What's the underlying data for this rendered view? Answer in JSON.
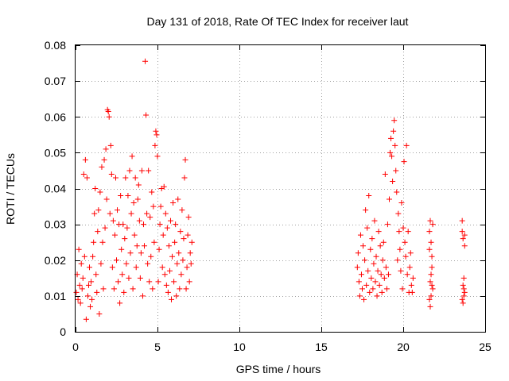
{
  "chart_data": {
    "type": "scatter",
    "title": "Day 131 of 2018, Rate Of TEC Index for receiver laut",
    "xlabel": "GPS time / hours",
    "ylabel": "ROTI / TECUs",
    "xlim": [
      0,
      25
    ],
    "ylim": [
      0,
      0.08
    ],
    "grid": true,
    "marker": "+",
    "color": "#ff0000",
    "x_ticks": [
      "0",
      "5",
      "10",
      "15",
      "20",
      "25"
    ],
    "y_ticks": [
      "0",
      "0.01",
      "0.02",
      "0.03",
      "0.04",
      "0.05",
      "0.06",
      "0.07",
      "0.08"
    ],
    "series": [
      {
        "name": "ROTI",
        "points": [
          [
            0.05,
            0.011
          ],
          [
            0.1,
            0.016
          ],
          [
            0.15,
            0.009
          ],
          [
            0.2,
            0.023
          ],
          [
            0.25,
            0.013
          ],
          [
            0.3,
            0.008
          ],
          [
            0.35,
            0.019
          ],
          [
            0.4,
            0.012
          ],
          [
            0.45,
            0.015
          ],
          [
            0.5,
            0.044
          ],
          [
            0.55,
            0.021
          ],
          [
            0.6,
            0.048
          ],
          [
            0.65,
            0.0035
          ],
          [
            0.7,
            0.043
          ],
          [
            0.75,
            0.01
          ],
          [
            0.8,
            0.013
          ],
          [
            0.85,
            0.018
          ],
          [
            0.9,
            0.007
          ],
          [
            0.95,
            0.014
          ],
          [
            1.0,
            0.009
          ],
          [
            1.05,
            0.021
          ],
          [
            1.1,
            0.025
          ],
          [
            1.15,
            0.033
          ],
          [
            1.2,
            0.04
          ],
          [
            1.25,
            0.016
          ],
          [
            1.3,
            0.011
          ],
          [
            1.35,
            0.028
          ],
          [
            1.4,
            0.034
          ],
          [
            1.45,
            0.005
          ],
          [
            1.5,
            0.039
          ],
          [
            1.55,
            0.019
          ],
          [
            1.6,
            0.046
          ],
          [
            1.65,
            0.025
          ],
          [
            1.7,
            0.012
          ],
          [
            1.75,
            0.048
          ],
          [
            1.8,
            0.029
          ],
          [
            1.85,
            0.051
          ],
          [
            1.9,
            0.037
          ],
          [
            1.95,
            0.062
          ],
          [
            2.0,
            0.0615
          ],
          [
            2.05,
            0.06
          ],
          [
            2.1,
            0.033
          ],
          [
            2.15,
            0.052
          ],
          [
            2.2,
            0.044
          ],
          [
            2.25,
            0.018
          ],
          [
            2.3,
            0.031
          ],
          [
            2.35,
            0.012
          ],
          [
            2.4,
            0.027
          ],
          [
            2.45,
            0.043
          ],
          [
            2.5,
            0.02
          ],
          [
            2.55,
            0.034
          ],
          [
            2.6,
            0.014
          ],
          [
            2.65,
            0.03
          ],
          [
            2.7,
            0.008
          ],
          [
            2.75,
            0.038
          ],
          [
            2.8,
            0.023
          ],
          [
            2.85,
            0.016
          ],
          [
            2.9,
            0.03
          ],
          [
            2.95,
            0.011
          ],
          [
            3.0,
            0.026
          ],
          [
            3.05,
            0.043
          ],
          [
            3.1,
            0.019
          ],
          [
            3.15,
            0.029
          ],
          [
            3.2,
            0.038
          ],
          [
            3.25,
            0.015
          ],
          [
            3.3,
            0.045
          ],
          [
            3.35,
            0.022
          ],
          [
            3.4,
            0.033
          ],
          [
            3.45,
            0.049
          ],
          [
            3.5,
            0.012
          ],
          [
            3.55,
            0.036
          ],
          [
            3.6,
            0.027
          ],
          [
            3.65,
            0.043
          ],
          [
            3.7,
            0.018
          ],
          [
            3.75,
            0.024
          ],
          [
            3.8,
            0.037
          ],
          [
            3.85,
            0.041
          ],
          [
            3.9,
            0.031
          ],
          [
            3.95,
            0.015
          ],
          [
            4.0,
            0.022
          ],
          [
            4.05,
            0.045
          ],
          [
            4.1,
            0.01
          ],
          [
            4.15,
            0.03
          ],
          [
            4.2,
            0.024
          ],
          [
            4.25,
            0.0755
          ],
          [
            4.3,
            0.0605
          ],
          [
            4.35,
            0.033
          ],
          [
            4.4,
            0.019
          ],
          [
            4.45,
            0.045
          ],
          [
            4.5,
            0.014
          ],
          [
            4.55,
            0.032
          ],
          [
            4.6,
            0.021
          ],
          [
            4.65,
            0.039
          ],
          [
            4.7,
            0.012
          ],
          [
            4.75,
            0.035
          ],
          [
            4.8,
            0.025
          ],
          [
            4.85,
            0.052
          ],
          [
            4.9,
            0.056
          ],
          [
            4.95,
            0.055
          ],
          [
            5.0,
            0.049
          ],
          [
            5.05,
            0.014
          ],
          [
            5.1,
            0.023
          ],
          [
            5.15,
            0.03
          ],
          [
            5.2,
            0.035
          ],
          [
            5.25,
            0.04
          ],
          [
            5.3,
            0.018
          ],
          [
            5.35,
            0.027
          ],
          [
            5.4,
            0.0405
          ],
          [
            5.45,
            0.016
          ],
          [
            5.5,
            0.033
          ],
          [
            5.55,
            0.013
          ],
          [
            5.6,
            0.029
          ],
          [
            5.65,
            0.011
          ],
          [
            5.7,
            0.024
          ],
          [
            5.75,
            0.017
          ],
          [
            5.8,
            0.031
          ],
          [
            5.85,
            0.009
          ],
          [
            5.9,
            0.021
          ],
          [
            5.95,
            0.036
          ],
          [
            6.0,
            0.014
          ],
          [
            6.05,
            0.025
          ],
          [
            6.1,
            0.03
          ],
          [
            6.15,
            0.01
          ],
          [
            6.2,
            0.019
          ],
          [
            6.25,
            0.037
          ],
          [
            6.3,
            0.022
          ],
          [
            6.35,
            0.012
          ],
          [
            6.4,
            0.028
          ],
          [
            6.45,
            0.016
          ],
          [
            6.5,
            0.034
          ],
          [
            6.55,
            0.02
          ],
          [
            6.6,
            0.026
          ],
          [
            6.65,
            0.043
          ],
          [
            6.7,
            0.048
          ],
          [
            6.75,
            0.012
          ],
          [
            6.8,
            0.018
          ],
          [
            6.85,
            0.027
          ],
          [
            6.9,
            0.032
          ],
          [
            6.95,
            0.014
          ],
          [
            7.0,
            0.022
          ],
          [
            7.05,
            0.019
          ],
          [
            7.1,
            0.025
          ],
          [
            17.2,
            0.018
          ],
          [
            17.25,
            0.022
          ],
          [
            17.3,
            0.014
          ],
          [
            17.35,
            0.01
          ],
          [
            17.4,
            0.027
          ],
          [
            17.45,
            0.016
          ],
          [
            17.5,
            0.012
          ],
          [
            17.55,
            0.024
          ],
          [
            17.6,
            0.009
          ],
          [
            17.65,
            0.02
          ],
          [
            17.7,
            0.034
          ],
          [
            17.75,
            0.013
          ],
          [
            17.8,
            0.029
          ],
          [
            17.85,
            0.017
          ],
          [
            17.9,
            0.038
          ],
          [
            17.95,
            0.011
          ],
          [
            18.0,
            0.023
          ],
          [
            18.05,
            0.015
          ],
          [
            18.1,
            0.026
          ],
          [
            18.15,
            0.012
          ],
          [
            18.2,
            0.019
          ],
          [
            18.25,
            0.031
          ],
          [
            18.3,
            0.014
          ],
          [
            18.35,
            0.021
          ],
          [
            18.4,
            0.01
          ],
          [
            18.45,
            0.017
          ],
          [
            18.5,
            0.028
          ],
          [
            18.55,
            0.013
          ],
          [
            18.6,
            0.024
          ],
          [
            18.65,
            0.016
          ],
          [
            18.7,
            0.011
          ],
          [
            18.75,
            0.02
          ],
          [
            18.8,
            0.025
          ],
          [
            18.85,
            0.015
          ],
          [
            18.9,
            0.044
          ],
          [
            18.95,
            0.018
          ],
          [
            19.0,
            0.012
          ],
          [
            19.05,
            0.03
          ],
          [
            19.1,
            0.016
          ],
          [
            19.15,
            0.037
          ],
          [
            19.2,
            0.05
          ],
          [
            19.25,
            0.054
          ],
          [
            19.3,
            0.049
          ],
          [
            19.35,
            0.042
          ],
          [
            19.4,
            0.056
          ],
          [
            19.45,
            0.059
          ],
          [
            19.5,
            0.052
          ],
          [
            19.55,
            0.045
          ],
          [
            19.6,
            0.039
          ],
          [
            19.65,
            0.02
          ],
          [
            19.7,
            0.033
          ],
          [
            19.75,
            0.028
          ],
          [
            19.8,
            0.023
          ],
          [
            19.85,
            0.017
          ],
          [
            19.9,
            0.036
          ],
          [
            19.95,
            0.012
          ],
          [
            20.0,
            0.029
          ],
          [
            20.05,
            0.0475
          ],
          [
            20.1,
            0.025
          ],
          [
            20.15,
            0.021
          ],
          [
            20.2,
            0.052
          ],
          [
            20.25,
            0.016
          ],
          [
            20.3,
            0.028
          ],
          [
            20.35,
            0.011
          ],
          [
            20.4,
            0.018
          ],
          [
            20.45,
            0.022
          ],
          [
            20.5,
            0.013
          ],
          [
            20.55,
            0.011
          ],
          [
            20.6,
            0.015
          ],
          [
            21.6,
            0.023
          ],
          [
            21.6,
            0.028
          ],
          [
            21.65,
            0.014
          ],
          [
            21.65,
            0.031
          ],
          [
            21.7,
            0.01
          ],
          [
            21.7,
            0.025
          ],
          [
            21.75,
            0.013
          ],
          [
            21.75,
            0.018
          ],
          [
            21.8,
            0.012
          ],
          [
            21.8,
            0.03
          ],
          [
            21.6,
            0.009
          ],
          [
            21.65,
            0.007
          ],
          [
            21.7,
            0.016
          ],
          [
            21.75,
            0.021
          ],
          [
            23.6,
            0.028
          ],
          [
            23.6,
            0.031
          ],
          [
            23.65,
            0.013
          ],
          [
            23.65,
            0.026
          ],
          [
            23.7,
            0.01
          ],
          [
            23.7,
            0.015
          ],
          [
            23.75,
            0.011
          ],
          [
            23.75,
            0.027
          ],
          [
            23.6,
            0.009
          ],
          [
            23.65,
            0.008
          ],
          [
            23.7,
            0.012
          ],
          [
            23.75,
            0.024
          ]
        ]
      }
    ]
  }
}
